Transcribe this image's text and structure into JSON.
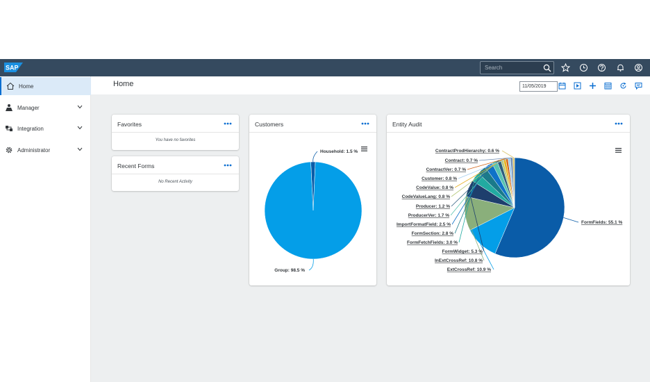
{
  "shellbar": {
    "logo_text": "SAP",
    "search_placeholder": "Search",
    "icons": [
      "search-icon",
      "star-icon",
      "history-icon",
      "help-icon",
      "bell-icon",
      "user-icon"
    ]
  },
  "sidebar": {
    "items": [
      {
        "label": "Home",
        "icon": "home-icon",
        "active": true
      },
      {
        "label": "Manager",
        "icon": "manager-icon",
        "expandable": true
      },
      {
        "label": "Integration",
        "icon": "integration-icon",
        "expandable": true
      },
      {
        "label": "Administrator",
        "icon": "gear-icon",
        "expandable": true
      }
    ]
  },
  "header": {
    "title": "Home",
    "date_value": "11/05/2019",
    "toolbar_icons": [
      "calendar-icon",
      "play-icon",
      "add-icon",
      "grid-calendar-icon",
      "refresh-icon",
      "comment-icon"
    ]
  },
  "cards": {
    "favorites": {
      "title": "Favorites",
      "empty_text": "You have no favorites"
    },
    "recent_forms": {
      "title": "Recent Forms",
      "empty_text": "No Recent Activity"
    },
    "customers": {
      "title": "Customers"
    },
    "entity_audit": {
      "title": "Entity Audit"
    }
  },
  "chart_data": [
    {
      "type": "pie",
      "title": "Customers",
      "labels": [
        "Household: 1.5 %",
        "Group: 98.5 %"
      ],
      "values": [
        1.5,
        98.5
      ],
      "colors": [
        "#0a5ca8",
        "#049ee8"
      ]
    },
    {
      "type": "pie",
      "title": "Entity Audit",
      "labels": [
        "FormFields: 55.1 %",
        "ExtCrossRef: 10.9 %",
        "InExtCrossRef: 10.8 %",
        "FormWidget: 5.3 %",
        "FormFetchFields: 3.0 %",
        "FormSection: 2.8 %",
        "ImportFormatField: 2.5 %",
        "ProducerVer: 1.7 %",
        "Producer: 1.2 %",
        "CodeValueLang: 0.8 %",
        "CodeValue: 0.8 %",
        "ContractVer: 0.7 %",
        "Customer: 0.8 %",
        "Contract: 0.7 %",
        "ContractProdHierarchy: 0.6 %"
      ],
      "values": [
        55.1,
        10.9,
        10.8,
        5.3,
        3.0,
        2.8,
        2.5,
        1.7,
        1.2,
        0.8,
        0.8,
        0.7,
        0.8,
        0.7,
        0.6
      ],
      "colors": [
        "#0a5ca8",
        "#049ee8",
        "#8aaf7b",
        "#1e3f6d",
        "#22aaa1",
        "#1a7a8a",
        "#0f72c8",
        "#59c4b0",
        "#2c5e7f",
        "#b5c87a",
        "#e8b020",
        "#d06418",
        "#a3cdef",
        "#6d8bb3",
        "#d9c36a"
      ]
    }
  ]
}
